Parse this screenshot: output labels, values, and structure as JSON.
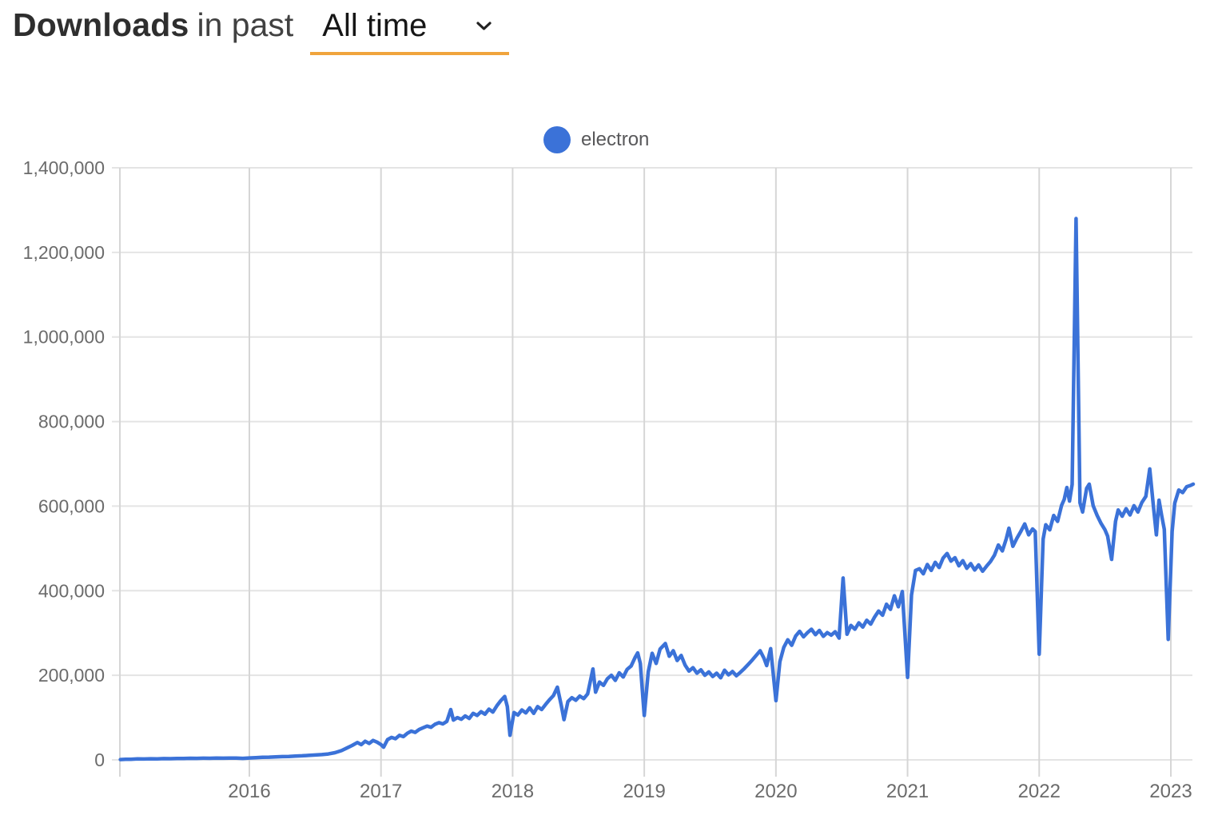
{
  "header": {
    "title_bold": "Downloads",
    "title_rest": "in past",
    "dropdown_value": "All time",
    "underline_color": "#F0A43C"
  },
  "legend": {
    "label": "electron",
    "dot_color": "#3B72D8"
  },
  "chart_data": {
    "type": "line",
    "title": "Downloads in past All time",
    "xlabel": "",
    "ylabel": "",
    "xlim": [
      2015.0,
      2023.25
    ],
    "ylim": [
      0,
      1400000
    ],
    "grid": true,
    "legend_position": "top-center",
    "x_ticks": [
      2016,
      2017,
      2018,
      2019,
      2020,
      2021,
      2022,
      2023
    ],
    "x_tick_labels": [
      "2016",
      "2017",
      "2018",
      "2019",
      "2020",
      "2021",
      "2022",
      "2023"
    ],
    "y_ticks": [
      0,
      200000,
      400000,
      600000,
      800000,
      1000000,
      1200000,
      1400000
    ],
    "y_tick_labels": [
      "0",
      "200,000",
      "400,000",
      "600,000",
      "800,000",
      "1,000,000",
      "1,200,000",
      "1,400,000"
    ],
    "series": [
      {
        "name": "electron",
        "color": "#3B72D8",
        "points": [
          [
            2015.02,
            800
          ],
          [
            2015.06,
            1600
          ],
          [
            2015.1,
            1400
          ],
          [
            2015.15,
            2200
          ],
          [
            2015.2,
            2000
          ],
          [
            2015.25,
            2600
          ],
          [
            2015.3,
            2400
          ],
          [
            2015.35,
            3000
          ],
          [
            2015.4,
            2800
          ],
          [
            2015.45,
            3400
          ],
          [
            2015.5,
            3200
          ],
          [
            2015.55,
            3800
          ],
          [
            2015.6,
            3500
          ],
          [
            2015.65,
            4000
          ],
          [
            2015.7,
            3700
          ],
          [
            2015.75,
            4200
          ],
          [
            2015.8,
            3900
          ],
          [
            2015.85,
            4400
          ],
          [
            2015.9,
            4100
          ],
          [
            2015.95,
            3600
          ],
          [
            2016.0,
            4600
          ],
          [
            2016.05,
            5200
          ],
          [
            2016.1,
            6000
          ],
          [
            2016.15,
            6500
          ],
          [
            2016.2,
            7200
          ],
          [
            2016.25,
            7800
          ],
          [
            2016.3,
            8200
          ],
          [
            2016.35,
            9000
          ],
          [
            2016.4,
            9600
          ],
          [
            2016.45,
            10500
          ],
          [
            2016.5,
            11500
          ],
          [
            2016.55,
            12500
          ],
          [
            2016.6,
            14000
          ],
          [
            2016.65,
            17000
          ],
          [
            2016.7,
            22000
          ],
          [
            2016.74,
            28000
          ],
          [
            2016.78,
            34000
          ],
          [
            2016.82,
            41000
          ],
          [
            2016.85,
            36000
          ],
          [
            2016.88,
            44000
          ],
          [
            2016.91,
            39000
          ],
          [
            2016.94,
            46000
          ],
          [
            2016.97,
            42000
          ],
          [
            2017.0,
            36000
          ],
          [
            2017.02,
            30000
          ],
          [
            2017.05,
            48000
          ],
          [
            2017.08,
            53000
          ],
          [
            2017.11,
            50000
          ],
          [
            2017.14,
            58000
          ],
          [
            2017.17,
            55000
          ],
          [
            2017.2,
            63000
          ],
          [
            2017.23,
            68000
          ],
          [
            2017.26,
            65000
          ],
          [
            2017.29,
            72000
          ],
          [
            2017.32,
            76000
          ],
          [
            2017.35,
            80000
          ],
          [
            2017.38,
            77000
          ],
          [
            2017.41,
            84000
          ],
          [
            2017.44,
            88000
          ],
          [
            2017.47,
            85000
          ],
          [
            2017.5,
            91000
          ],
          [
            2017.53,
            119000
          ],
          [
            2017.55,
            94000
          ],
          [
            2017.58,
            100000
          ],
          [
            2017.61,
            96000
          ],
          [
            2017.64,
            104000
          ],
          [
            2017.67,
            98000
          ],
          [
            2017.7,
            110000
          ],
          [
            2017.73,
            105000
          ],
          [
            2017.76,
            114000
          ],
          [
            2017.79,
            108000
          ],
          [
            2017.82,
            120000
          ],
          [
            2017.85,
            113000
          ],
          [
            2017.88,
            128000
          ],
          [
            2017.91,
            140000
          ],
          [
            2017.94,
            150000
          ],
          [
            2017.96,
            126000
          ],
          [
            2017.98,
            58000
          ],
          [
            2018.01,
            112000
          ],
          [
            2018.04,
            106000
          ],
          [
            2018.07,
            118000
          ],
          [
            2018.1,
            111000
          ],
          [
            2018.13,
            123000
          ],
          [
            2018.16,
            110000
          ],
          [
            2018.19,
            126000
          ],
          [
            2018.22,
            119000
          ],
          [
            2018.25,
            131000
          ],
          [
            2018.28,
            142000
          ],
          [
            2018.31,
            152000
          ],
          [
            2018.34,
            172000
          ],
          [
            2018.37,
            128000
          ],
          [
            2018.39,
            95000
          ],
          [
            2018.42,
            138000
          ],
          [
            2018.45,
            147000
          ],
          [
            2018.48,
            141000
          ],
          [
            2018.51,
            151000
          ],
          [
            2018.54,
            145000
          ],
          [
            2018.57,
            156000
          ],
          [
            2018.61,
            215000
          ],
          [
            2018.63,
            160000
          ],
          [
            2018.66,
            184000
          ],
          [
            2018.69,
            176000
          ],
          [
            2018.72,
            192000
          ],
          [
            2018.75,
            200000
          ],
          [
            2018.78,
            188000
          ],
          [
            2018.81,
            206000
          ],
          [
            2018.84,
            196000
          ],
          [
            2018.87,
            214000
          ],
          [
            2018.9,
            222000
          ],
          [
            2018.93,
            242000
          ],
          [
            2018.95,
            253000
          ],
          [
            2018.97,
            228000
          ],
          [
            2019.0,
            105000
          ],
          [
            2019.03,
            208000
          ],
          [
            2019.06,
            252000
          ],
          [
            2019.09,
            228000
          ],
          [
            2019.12,
            262000
          ],
          [
            2019.16,
            275000
          ],
          [
            2019.19,
            245000
          ],
          [
            2019.22,
            258000
          ],
          [
            2019.25,
            235000
          ],
          [
            2019.28,
            247000
          ],
          [
            2019.31,
            224000
          ],
          [
            2019.34,
            210000
          ],
          [
            2019.37,
            218000
          ],
          [
            2019.4,
            205000
          ],
          [
            2019.43,
            213000
          ],
          [
            2019.46,
            200000
          ],
          [
            2019.49,
            208000
          ],
          [
            2019.52,
            197000
          ],
          [
            2019.55,
            205000
          ],
          [
            2019.58,
            194000
          ],
          [
            2019.61,
            212000
          ],
          [
            2019.64,
            201000
          ],
          [
            2019.67,
            209000
          ],
          [
            2019.7,
            199000
          ],
          [
            2019.73,
            207000
          ],
          [
            2019.76,
            216000
          ],
          [
            2019.79,
            226000
          ],
          [
            2019.82,
            236000
          ],
          [
            2019.85,
            247000
          ],
          [
            2019.88,
            258000
          ],
          [
            2019.91,
            240000
          ],
          [
            2019.93,
            223000
          ],
          [
            2019.96,
            263000
          ],
          [
            2020.0,
            140000
          ],
          [
            2020.03,
            232000
          ],
          [
            2020.06,
            266000
          ],
          [
            2020.09,
            284000
          ],
          [
            2020.12,
            271000
          ],
          [
            2020.15,
            293000
          ],
          [
            2020.18,
            304000
          ],
          [
            2020.21,
            291000
          ],
          [
            2020.24,
            301000
          ],
          [
            2020.27,
            309000
          ],
          [
            2020.3,
            296000
          ],
          [
            2020.33,
            306000
          ],
          [
            2020.36,
            292000
          ],
          [
            2020.39,
            301000
          ],
          [
            2020.42,
            295000
          ],
          [
            2020.45,
            303000
          ],
          [
            2020.48,
            288000
          ],
          [
            2020.51,
            430000
          ],
          [
            2020.54,
            297000
          ],
          [
            2020.57,
            318000
          ],
          [
            2020.6,
            309000
          ],
          [
            2020.63,
            324000
          ],
          [
            2020.66,
            314000
          ],
          [
            2020.69,
            330000
          ],
          [
            2020.72,
            321000
          ],
          [
            2020.75,
            338000
          ],
          [
            2020.78,
            352000
          ],
          [
            2020.81,
            342000
          ],
          [
            2020.84,
            368000
          ],
          [
            2020.87,
            356000
          ],
          [
            2020.9,
            388000
          ],
          [
            2020.93,
            362000
          ],
          [
            2020.96,
            398000
          ],
          [
            2021.0,
            195000
          ],
          [
            2021.03,
            390000
          ],
          [
            2021.06,
            448000
          ],
          [
            2021.09,
            452000
          ],
          [
            2021.12,
            440000
          ],
          [
            2021.15,
            462000
          ],
          [
            2021.18,
            448000
          ],
          [
            2021.21,
            467000
          ],
          [
            2021.24,
            455000
          ],
          [
            2021.27,
            477000
          ],
          [
            2021.3,
            488000
          ],
          [
            2021.33,
            470000
          ],
          [
            2021.36,
            478000
          ],
          [
            2021.39,
            459000
          ],
          [
            2021.42,
            471000
          ],
          [
            2021.45,
            453000
          ],
          [
            2021.48,
            464000
          ],
          [
            2021.51,
            449000
          ],
          [
            2021.54,
            461000
          ],
          [
            2021.57,
            446000
          ],
          [
            2021.6,
            458000
          ],
          [
            2021.63,
            469000
          ],
          [
            2021.66,
            484000
          ],
          [
            2021.69,
            508000
          ],
          [
            2021.72,
            494000
          ],
          [
            2021.75,
            523000
          ],
          [
            2021.77,
            548000
          ],
          [
            2021.8,
            505000
          ],
          [
            2021.83,
            524000
          ],
          [
            2021.86,
            540000
          ],
          [
            2021.89,
            558000
          ],
          [
            2021.92,
            532000
          ],
          [
            2021.95,
            546000
          ],
          [
            2021.97,
            540000
          ],
          [
            2022.0,
            250000
          ],
          [
            2022.03,
            522000
          ],
          [
            2022.05,
            556000
          ],
          [
            2022.08,
            544000
          ],
          [
            2022.11,
            578000
          ],
          [
            2022.14,
            564000
          ],
          [
            2022.17,
            602000
          ],
          [
            2022.19,
            616000
          ],
          [
            2022.21,
            644000
          ],
          [
            2022.23,
            612000
          ],
          [
            2022.25,
            651000
          ],
          [
            2022.28,
            1280000
          ],
          [
            2022.31,
            608000
          ],
          [
            2022.33,
            586000
          ],
          [
            2022.36,
            642000
          ],
          [
            2022.38,
            652000
          ],
          [
            2022.41,
            601000
          ],
          [
            2022.44,
            578000
          ],
          [
            2022.47,
            559000
          ],
          [
            2022.5,
            544000
          ],
          [
            2022.52,
            529000
          ],
          [
            2022.55,
            474000
          ],
          [
            2022.58,
            564000
          ],
          [
            2022.6,
            591000
          ],
          [
            2022.63,
            576000
          ],
          [
            2022.66,
            594000
          ],
          [
            2022.69,
            579000
          ],
          [
            2022.72,
            601000
          ],
          [
            2022.75,
            586000
          ],
          [
            2022.78,
            609000
          ],
          [
            2022.81,
            623000
          ],
          [
            2022.84,
            688000
          ],
          [
            2022.87,
            592000
          ],
          [
            2022.89,
            532000
          ],
          [
            2022.91,
            614000
          ],
          [
            2022.93,
            578000
          ],
          [
            2022.95,
            545000
          ],
          [
            2022.98,
            285000
          ],
          [
            2023.01,
            540000
          ],
          [
            2023.03,
            607000
          ],
          [
            2023.06,
            638000
          ],
          [
            2023.09,
            632000
          ],
          [
            2023.12,
            646000
          ],
          [
            2023.15,
            649000
          ],
          [
            2023.17,
            652000
          ]
        ]
      }
    ]
  }
}
